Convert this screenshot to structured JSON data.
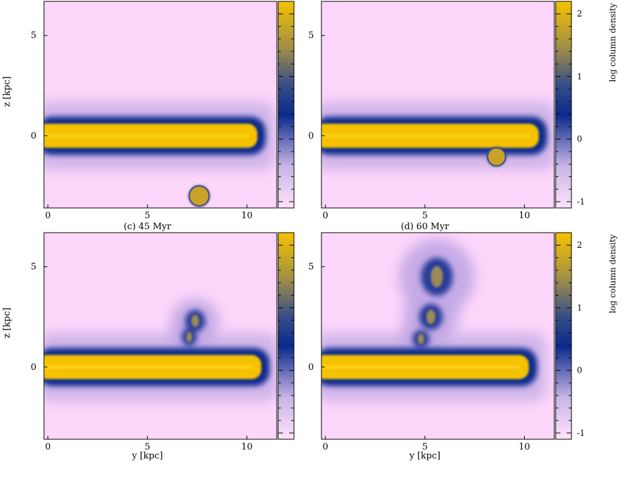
{
  "chart_data": [
    {
      "type": "heatmap",
      "title": "",
      "xlabel": "",
      "ylabel": "z [kpc]",
      "xticks": [
        0,
        5,
        10
      ],
      "yticks": [
        0,
        5
      ],
      "xlim": [
        -0.2,
        11.5
      ],
      "ylim": [
        -3.6,
        6.7
      ],
      "disk": {
        "z_center": 0,
        "core_half_thickness": 0.6,
        "envelope_half_thickness": 1.4,
        "right_edge_y": 10.8
      },
      "cloud": {
        "y": 7.6,
        "z": -3.0,
        "radius": 0.5
      },
      "plumes": []
    },
    {
      "type": "heatmap",
      "title": "",
      "xlabel": "",
      "ylabel": "",
      "xticks": [
        0,
        5,
        10
      ],
      "yticks": [
        0,
        5
      ],
      "xlim": [
        -0.2,
        11.5
      ],
      "ylim": [
        -3.6,
        6.7
      ],
      "disk": {
        "z_center": 0,
        "core_half_thickness": 0.6,
        "envelope_half_thickness": 1.4,
        "right_edge_y": 11.0
      },
      "cloud": {
        "y": 8.6,
        "z": -1.05,
        "radius": 0.45
      },
      "plumes": [],
      "colorbar": {
        "label": "log column density",
        "ticks": [
          2,
          1,
          0,
          -1
        ],
        "range": [
          -1.1,
          2.2
        ]
      }
    },
    {
      "type": "heatmap",
      "title": "(c) 45 Myr",
      "xlabel": "y [kpc]",
      "ylabel": "z [kpc]",
      "xticks": [
        0,
        5,
        10
      ],
      "yticks": [
        0,
        5
      ],
      "xlim": [
        -0.2,
        11.5
      ],
      "ylim": [
        -3.6,
        6.7
      ],
      "disk": {
        "z_center": 0,
        "core_half_thickness": 0.6,
        "envelope_half_thickness": 1.4,
        "right_edge_y": 11.0
      },
      "cloud": null,
      "plumes": [
        {
          "y": 7.4,
          "z": 2.3,
          "rx": 1.2,
          "rz": 1.1
        },
        {
          "y": 7.1,
          "z": 1.5,
          "rx": 0.9,
          "rz": 0.9
        }
      ]
    },
    {
      "type": "heatmap",
      "title": "(d) 60 Myr",
      "xlabel": "y [kpc]",
      "ylabel": "",
      "xticks": [
        0,
        5,
        10
      ],
      "yticks": [
        0,
        5
      ],
      "xlim": [
        -0.2,
        11.5
      ],
      "ylim": [
        -3.6,
        6.7
      ],
      "disk": {
        "z_center": 0,
        "core_half_thickness": 0.6,
        "envelope_half_thickness": 1.4,
        "right_edge_y": 10.5
      },
      "cloud": null,
      "plumes": [
        {
          "y": 5.6,
          "z": 4.5,
          "rx": 1.9,
          "rz": 1.9
        },
        {
          "y": 5.3,
          "z": 2.5,
          "rx": 1.4,
          "rz": 1.3
        },
        {
          "y": 4.8,
          "z": 1.4,
          "rx": 1.0,
          "rz": 0.9
        }
      ],
      "colorbar": {
        "label": "log column density",
        "ticks": [
          2,
          1,
          0,
          -1
        ],
        "range": [
          -1.1,
          2.2
        ]
      }
    }
  ],
  "colors": {
    "background": "#fdd6fb",
    "low": "#d8b8ef",
    "mid": "#0a2a8c",
    "high": "#f5c200",
    "cloud": "#c9a22a",
    "cloud_edge": "#3e4f86"
  }
}
